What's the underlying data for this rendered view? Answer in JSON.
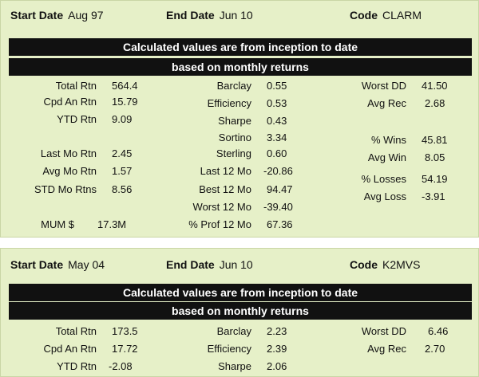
{
  "panels": [
    {
      "header": {
        "start_label": "Start Date",
        "start_value": "Aug 97",
        "end_label": "End Date",
        "end_value": "Jun 10",
        "code_label": "Code",
        "code_value": "CLARM"
      },
      "banner1": "Calculated values are from inception to date",
      "banner2": "based on monthly returns",
      "col1": [
        {
          "label": "Total Rtn",
          "value": "564.4"
        },
        {
          "label": "Cpd An Rtn",
          "value": "15.79"
        },
        {
          "label": "YTD Rtn",
          "value": "9.09"
        },
        {
          "label": "Last Mo Rtn",
          "value": "2.45"
        },
        {
          "label": "Avg Mo Rtn",
          "value": "1.57"
        },
        {
          "label": "STD Mo Rtns",
          "value": "8.56"
        },
        {
          "label": "MUM $",
          "value": "17.3M"
        }
      ],
      "col2": [
        {
          "label": "Barclay",
          "value": "0.55"
        },
        {
          "label": "Efficiency",
          "value": "0.53"
        },
        {
          "label": "Sharpe",
          "value": "0.43"
        },
        {
          "label": "Sortino",
          "value": "3.34"
        },
        {
          "label": "Sterling",
          "value": "0.60"
        },
        {
          "label": "Last 12 Mo",
          "value": "-20.86"
        },
        {
          "label": "Best 12 Mo",
          "value": "94.47"
        },
        {
          "label": "Worst 12 Mo",
          "value": "-39.40"
        },
        {
          "label": "% Prof 12 Mo",
          "value": "67.36"
        }
      ],
      "col3": [
        {
          "label": "Worst DD",
          "value": "41.50"
        },
        {
          "label": "Avg Rec",
          "value": "2.68"
        },
        {
          "label": "% Wins",
          "value": "45.81"
        },
        {
          "label": "Avg Win",
          "value": "8.05"
        },
        {
          "label": "% Losses",
          "value": "54.19"
        },
        {
          "label": "Avg Loss",
          "value": "-3.91"
        }
      ]
    },
    {
      "header": {
        "start_label": "Start Date",
        "start_value": "May 04",
        "end_label": "End Date",
        "end_value": "Jun 10",
        "code_label": "Code",
        "code_value": "K2MVS"
      },
      "banner1": "Calculated values are from inception to date",
      "banner2": "based on monthly returns",
      "col1": [
        {
          "label": "Total Rtn",
          "value": "173.5"
        },
        {
          "label": "Cpd An Rtn",
          "value": "17.72"
        },
        {
          "label": "YTD Rtn",
          "value": "-2.08"
        }
      ],
      "col2": [
        {
          "label": "Barclay",
          "value": "2.23"
        },
        {
          "label": "Efficiency",
          "value": "2.39"
        },
        {
          "label": "Sharpe",
          "value": "2.06"
        }
      ],
      "col3": [
        {
          "label": "Worst DD",
          "value": "6.46"
        },
        {
          "label": "Avg Rec",
          "value": "2.70"
        }
      ]
    }
  ]
}
